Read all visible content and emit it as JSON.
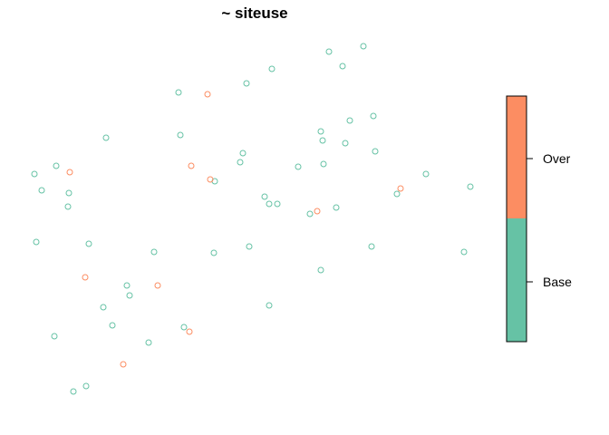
{
  "chart_data": {
    "type": "scatter",
    "title": "~ siteuse",
    "xlabel": "",
    "ylabel": "",
    "axes_visible": false,
    "grid": false,
    "legend": {
      "type": "colorbar",
      "placement": "right",
      "entries": [
        {
          "label": "Over",
          "color": "#fc8d62"
        },
        {
          "label": "Base",
          "color": "#66c2a5"
        }
      ]
    },
    "series": [
      {
        "name": "Base",
        "color": "#66c2a5",
        "marker": "open-circle",
        "points": [
          [
            401,
            51
          ],
          [
            363,
            57
          ],
          [
            378,
            73
          ],
          [
            300,
            76
          ],
          [
            197,
            102
          ],
          [
            272,
            92
          ],
          [
            412,
            128
          ],
          [
            386,
            133
          ],
          [
            354,
            145
          ],
          [
            381,
            158
          ],
          [
            356,
            155
          ],
          [
            414,
            167
          ],
          [
            117,
            152
          ],
          [
            199,
            149
          ],
          [
            268,
            169
          ],
          [
            265,
            179
          ],
          [
            329,
            184
          ],
          [
            357,
            181
          ],
          [
            470,
            192
          ],
          [
            519,
            206
          ],
          [
            38,
            192
          ],
          [
            62,
            183
          ],
          [
            46,
            210
          ],
          [
            76,
            213
          ],
          [
            75,
            228
          ],
          [
            237,
            200
          ],
          [
            292,
            217
          ],
          [
            297,
            225
          ],
          [
            306,
            225
          ],
          [
            342,
            236
          ],
          [
            371,
            229
          ],
          [
            438,
            214
          ],
          [
            40,
            267
          ],
          [
            98,
            269
          ],
          [
            170,
            278
          ],
          [
            236,
            279
          ],
          [
            275,
            272
          ],
          [
            410,
            272
          ],
          [
            512,
            278
          ],
          [
            354,
            298
          ],
          [
            140,
            315
          ],
          [
            143,
            326
          ],
          [
            114,
            339
          ],
          [
            297,
            337
          ],
          [
            124,
            359
          ],
          [
            203,
            361
          ],
          [
            60,
            371
          ],
          [
            164,
            378
          ],
          [
            95,
            426
          ],
          [
            81,
            432
          ]
        ]
      },
      {
        "name": "Over",
        "color": "#fc8d62",
        "marker": "open-circle",
        "points": [
          [
            229,
            104
          ],
          [
            77,
            190
          ],
          [
            211,
            183
          ],
          [
            232,
            198
          ],
          [
            442,
            208
          ],
          [
            350,
            233
          ],
          [
            94,
            306
          ],
          [
            174,
            315
          ],
          [
            209,
            366
          ],
          [
            136,
            402
          ]
        ]
      }
    ]
  }
}
